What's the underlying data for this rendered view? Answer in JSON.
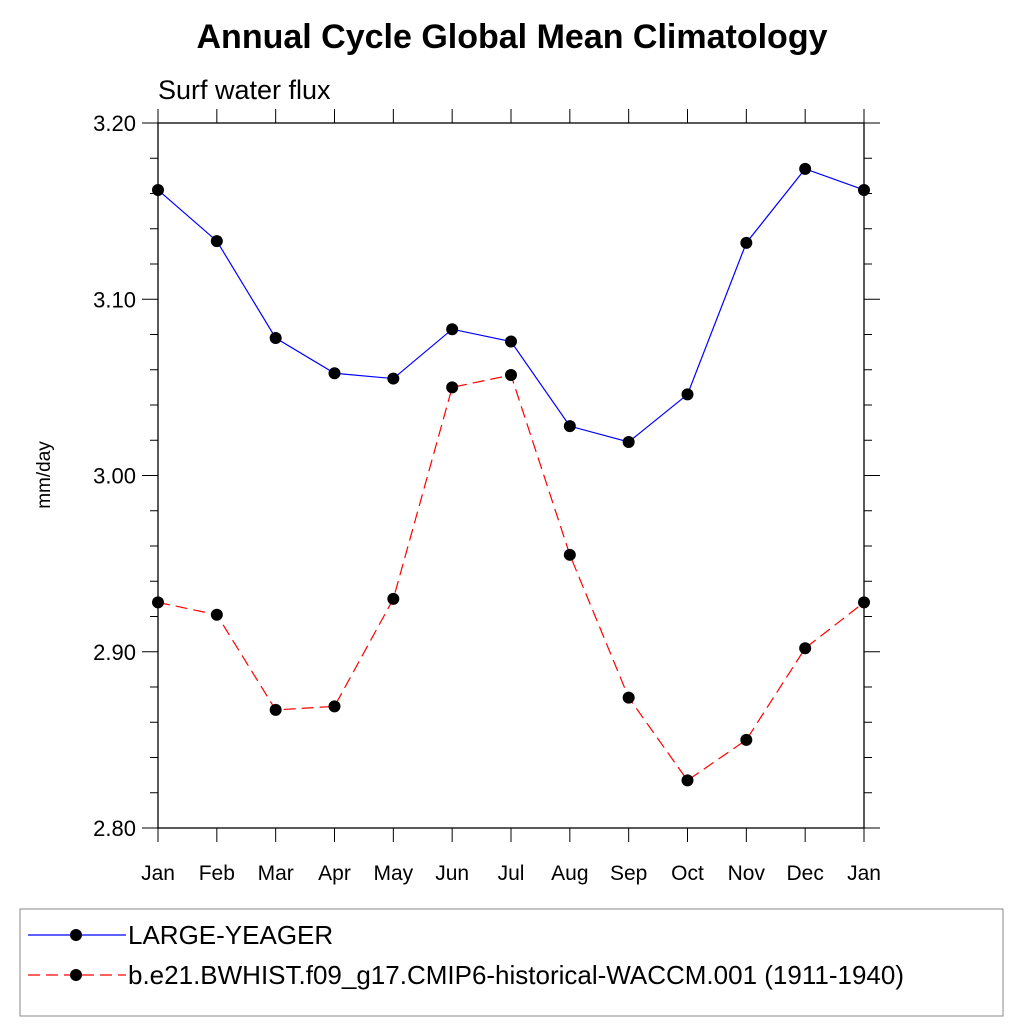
{
  "chart_data": {
    "type": "line",
    "title": "Annual Cycle Global Mean Climatology",
    "subtitle": "Surf water flux",
    "xlabel": "",
    "ylabel": "mm/day",
    "categories": [
      "Jan",
      "Feb",
      "Mar",
      "Apr",
      "May",
      "Jun",
      "Jul",
      "Aug",
      "Sep",
      "Oct",
      "Nov",
      "Dec",
      "Jan"
    ],
    "ylim": [
      2.8,
      3.2
    ],
    "yticks": [
      "3.20",
      "3.10",
      "3.00",
      "2.90",
      "2.80"
    ],
    "ytick_values": [
      3.2,
      3.1,
      3.0,
      2.9,
      2.8
    ],
    "grid": false,
    "legend_position": "bottom",
    "series": [
      {
        "name": "LARGE-YEAGER",
        "color": "#0000ff",
        "line_style": "solid",
        "marker": "filled-circle",
        "values": [
          3.162,
          3.133,
          3.078,
          3.058,
          3.055,
          3.083,
          3.076,
          3.028,
          3.019,
          3.046,
          3.132,
          3.174,
          3.162
        ]
      },
      {
        "name": "b.e21.BWHIST.f09_g17.CMIP6-historical-WACCM.001 (1911-1940)",
        "color": "#ff0000",
        "line_style": "dashed",
        "marker": "filled-circle",
        "values": [
          2.928,
          2.921,
          2.867,
          2.869,
          2.93,
          3.05,
          3.057,
          2.955,
          2.874,
          2.827,
          2.85,
          2.902,
          2.928
        ]
      }
    ]
  }
}
